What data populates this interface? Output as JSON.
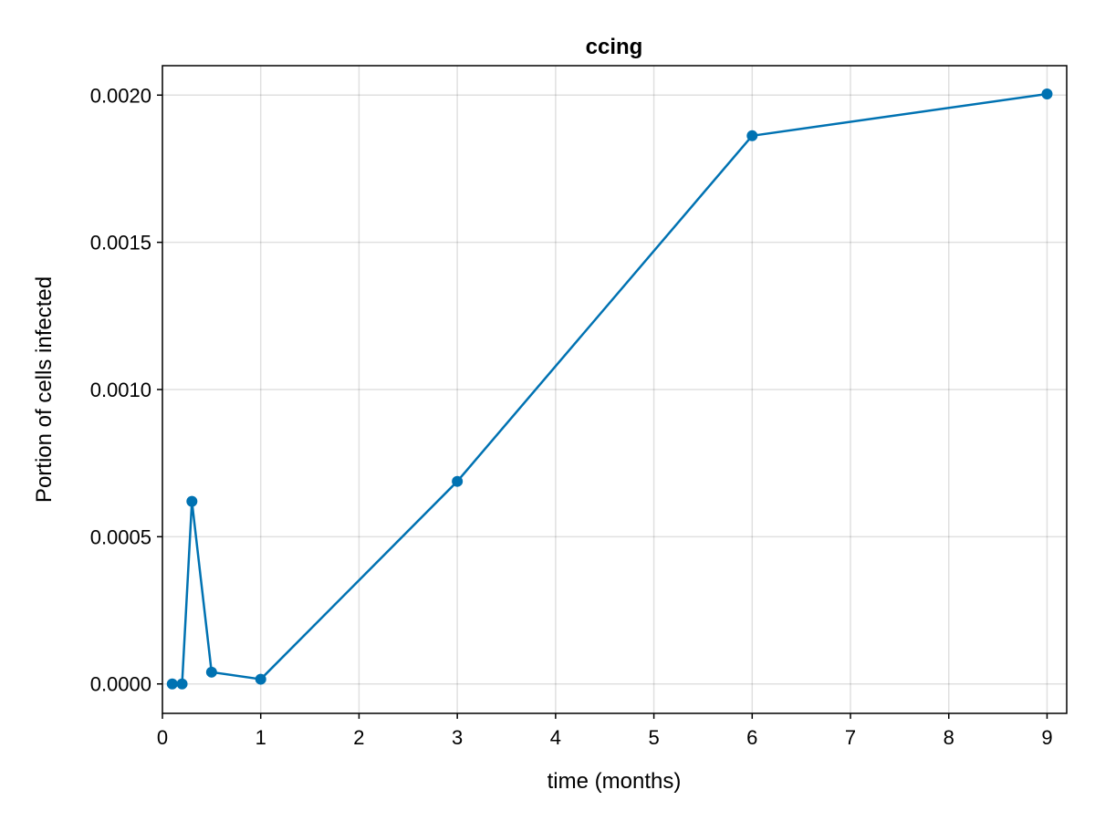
{
  "chart_data": {
    "type": "line",
    "title": "ccing",
    "xlabel": "time (months)",
    "ylabel": "Portion of cells infected",
    "xlim": [
      0,
      9.2
    ],
    "ylim": [
      -0.0001,
      0.0021
    ],
    "xticks": [
      0,
      1,
      2,
      3,
      4,
      5,
      6,
      7,
      8,
      9
    ],
    "xtick_labels": [
      "0",
      "1",
      "2",
      "3",
      "4",
      "5",
      "6",
      "7",
      "8",
      "9"
    ],
    "yticks": [
      0.0,
      0.0005,
      0.001,
      0.0015,
      0.002
    ],
    "ytick_labels": [
      "0.0000",
      "0.0005",
      "0.0010",
      "0.0015",
      "0.0020"
    ],
    "grid": true,
    "series": [
      {
        "color": "#0072b2",
        "markers": true,
        "x": [
          0.1,
          0.2,
          0.3,
          0.5,
          1,
          3,
          6,
          9
        ],
        "y": [
          0.0,
          0.0,
          0.00062,
          4e-05,
          1.6e-05,
          0.000688,
          0.001862,
          0.002004
        ]
      }
    ]
  }
}
